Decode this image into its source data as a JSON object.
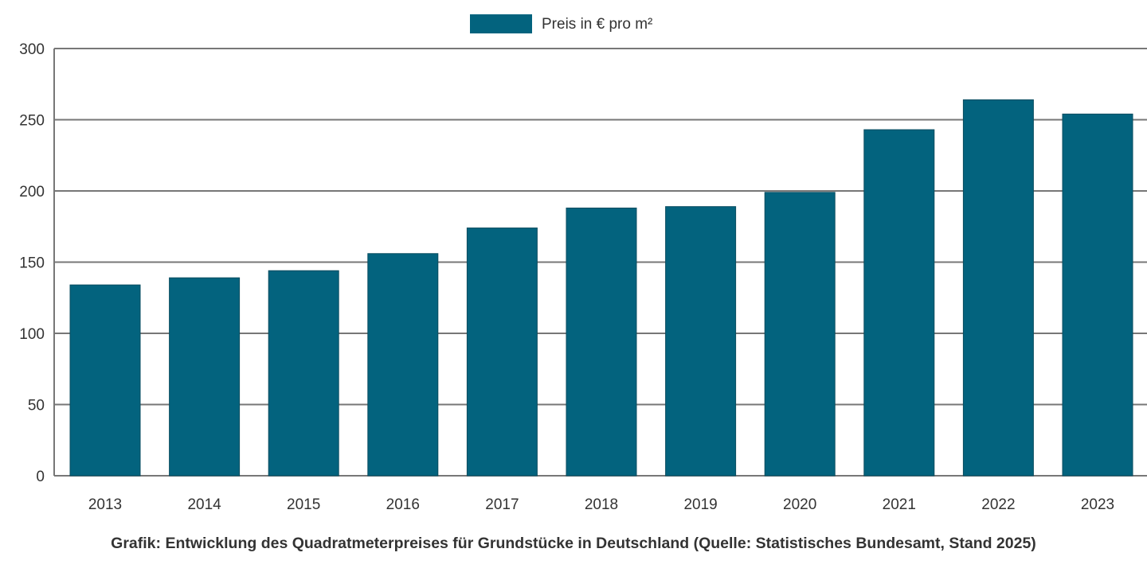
{
  "chart_data": {
    "type": "bar",
    "title": "",
    "xlabel": "",
    "ylabel": "",
    "categories": [
      "2013",
      "2014",
      "2015",
      "2016",
      "2017",
      "2018",
      "2019",
      "2020",
      "2021",
      "2022",
      "2023"
    ],
    "series": [
      {
        "name": "Preis in € pro m²",
        "values": [
          134,
          139,
          144,
          156,
          174,
          188,
          189,
          199,
          243,
          264,
          254
        ],
        "color": "#03637e"
      }
    ],
    "ylim": [
      0,
      300
    ],
    "yticks": [
      0,
      50,
      100,
      150,
      200,
      250,
      300
    ],
    "grid": true,
    "legend": "top-center"
  },
  "caption": "Grafik: Entwicklung des Quadratmeterpreises für Grundstücke in Deutschland (Quelle: Statistisches Bundesamt, Stand 2025)"
}
